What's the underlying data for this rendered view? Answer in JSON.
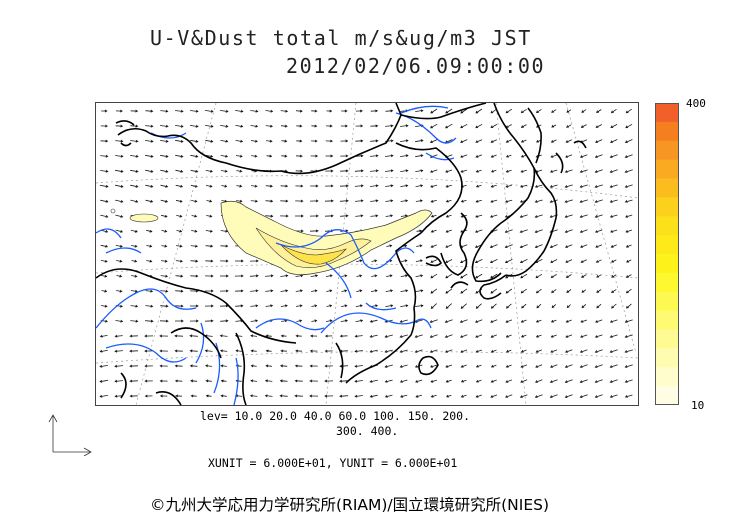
{
  "header": {
    "title": "U-V&Dust total m/s&ug/m3 JST",
    "datetime": "2012/02/06.09:00:00"
  },
  "colorbar": {
    "max_label": "400",
    "min_label": "10",
    "colors": [
      "#f2602a",
      "#f57f1f",
      "#f79622",
      "#f9aa20",
      "#fbbd1e",
      "#fbd11c",
      "#fce01a",
      "#fdea18",
      "#fdf31a",
      "#fdf830",
      "#fef950",
      "#fefa72",
      "#fefb92",
      "#fefcb0",
      "#fffdcc",
      "#fffee4"
    ]
  },
  "contour_levels": {
    "line1": "lev= 10.0 20.0 40.0 60.0 100. 150. 200.",
    "line2": "300. 400."
  },
  "units": "XUNIT = 6.000E+01, YUNIT = 6.000E+01",
  "credit": "©九州大学応用力学研究所(RIAM)/国立環境研究所(NIES)",
  "map": {
    "coastline_color": "#000000",
    "river_color": "#1a5cff",
    "dust_fill_light": "#fffbb8",
    "wind_arrow_color": "#1a1a1a"
  }
}
